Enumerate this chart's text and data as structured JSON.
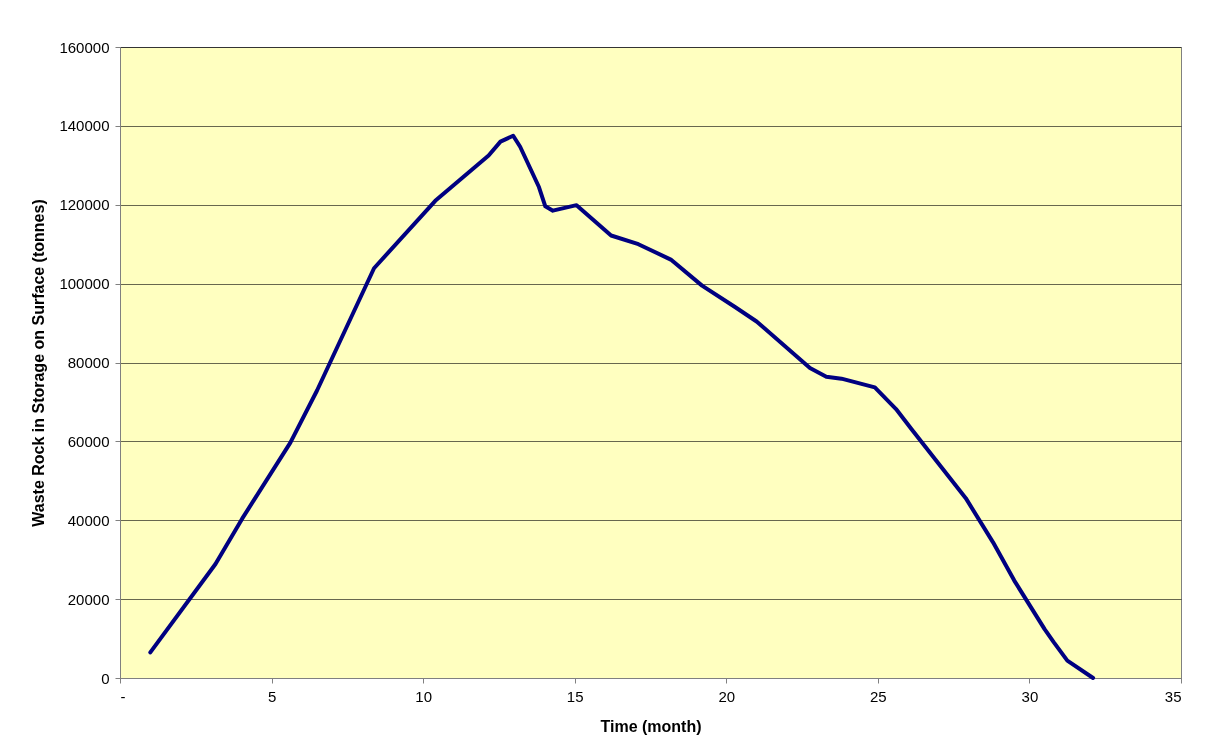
{
  "chart_data": {
    "type": "line",
    "xlabel": "Time (month)",
    "ylabel": "Waste Rock in Storage on Surface (tonnes)",
    "x": [
      1,
      3.15,
      4.03,
      5.62,
      6.5,
      8.38,
      10.4,
      12.16,
      12.55,
      12.97,
      13.2,
      13.82,
      14.03,
      14.28,
      15.06,
      16.2,
      17.1,
      18.17,
      19.2,
      20.3,
      21.0,
      22.76,
      23.3,
      23.8,
      24.9,
      25.6,
      26.1,
      27.0,
      27.9,
      28.8,
      29.5,
      30.5,
      30.8,
      31.25,
      32.1
    ],
    "series": [
      {
        "color": "#000080",
        "values": [
          6500,
          28900,
          40400,
          59700,
          72900,
          103900,
          121000,
          132500,
          136000,
          137500,
          134700,
          124500,
          119600,
          118500,
          119900,
          112200,
          110000,
          106100,
          99500,
          94000,
          90400,
          78600,
          76400,
          75900,
          73700,
          68200,
          63200,
          54400,
          45600,
          34400,
          24700,
          12400,
          9100,
          4400,
          0
        ]
      }
    ],
    "xlim": [
      0,
      35
    ],
    "xticks": [
      {
        "value": 0,
        "label": "-"
      },
      5,
      10,
      15,
      20,
      25,
      30,
      35
    ],
    "ylim": [
      0,
      160000
    ],
    "yticks": [
      0,
      20000,
      40000,
      60000,
      80000,
      100000,
      120000,
      140000,
      160000
    ],
    "grid": "y",
    "marker": "none",
    "line_style": "solid"
  }
}
